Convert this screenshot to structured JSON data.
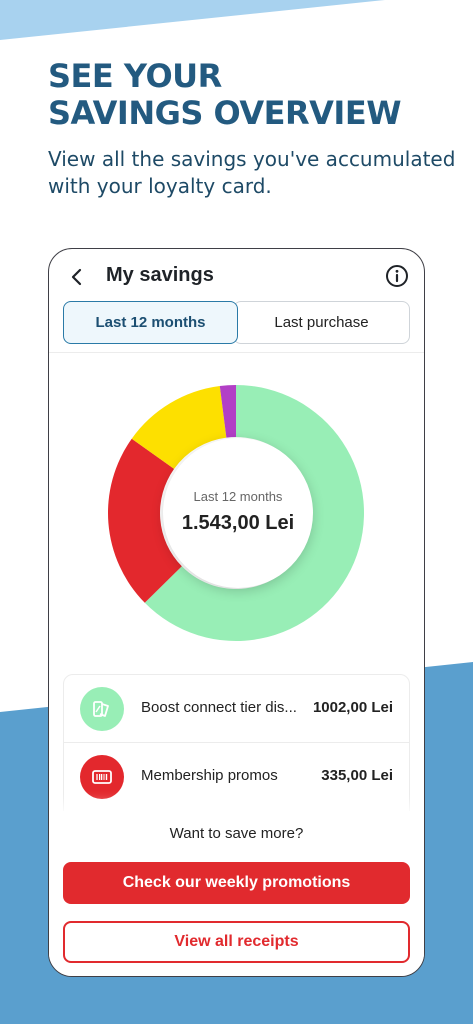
{
  "promo": {
    "headline_line1": "SEE YOUR",
    "headline_line2": "SAVINGS OVERVIEW",
    "subtitle": "View all the savings you've accumulated with your loyalty card."
  },
  "app": {
    "title": "My savings",
    "back_icon": "chevron-left-icon",
    "info_icon": "info-circle-icon"
  },
  "tabs": [
    {
      "label": "Last 12 months",
      "active": true
    },
    {
      "label": "Last purchase",
      "active": false
    }
  ],
  "summary": {
    "period_label": "Last 12 months",
    "total": "1.543,00 Lei"
  },
  "chart_data": {
    "type": "pie",
    "slices": [
      {
        "value": 62,
        "color": "#98eeb6"
      },
      {
        "value": 22,
        "color": "#e3282d"
      },
      {
        "value": 13,
        "color": "#fde000"
      },
      {
        "value": 2,
        "color": "#b23fc6"
      }
    ]
  },
  "savings_items": [
    {
      "label": "Boost connect tier dis...",
      "amount": "1002,00 Lei",
      "icon": "voucher-tags-icon",
      "icon_bg": "#98eeb6"
    },
    {
      "label": "Membership promos",
      "amount": "335,00 Lei",
      "icon": "barcode-card-icon",
      "icon_bg": "#e3282d"
    }
  ],
  "cta": {
    "prompt": "Want to save more?",
    "primary_label": "Check our weekly promotions",
    "secondary_label": "View all receipts"
  },
  "colors": {
    "brand_blue": "#235a80",
    "brand_red": "#e12a2e",
    "bg_light_blue": "#a8d2ef",
    "bg_blue": "#5a9fce"
  }
}
